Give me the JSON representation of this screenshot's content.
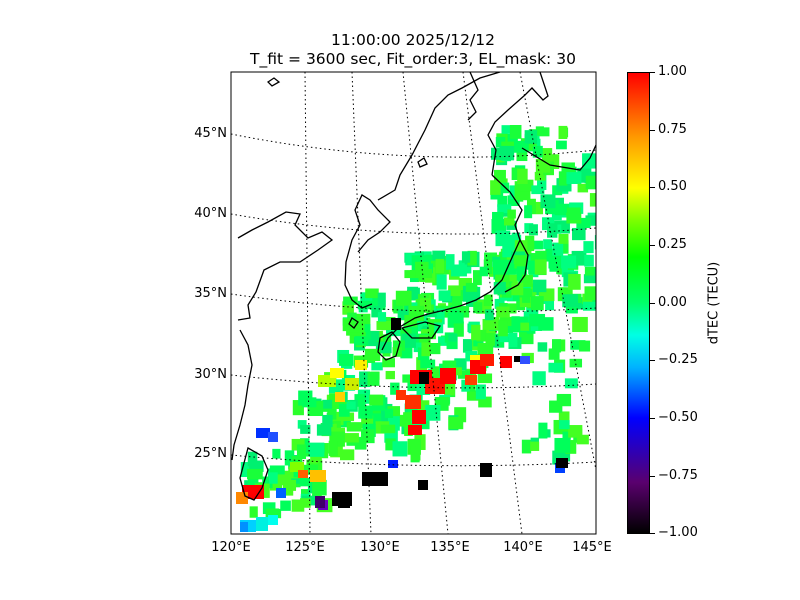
{
  "title": {
    "line1": "11:00:00 2025/12/12",
    "line2": "T_fit = 3600 sec, Fit_order:3, EL_mask: 30"
  },
  "map": {
    "lat_labels": [
      "45°N",
      "40°N",
      "35°N",
      "30°N",
      "25°N"
    ],
    "lon_labels": [
      "120°E",
      "125°E",
      "130°E",
      "135°E",
      "140°E",
      "145°E"
    ],
    "extent": {
      "lon": [
        120,
        145
      ],
      "lat": [
        20,
        49
      ]
    }
  },
  "colorbar": {
    "label": "dTEC (TECU)",
    "ticks": [
      "1.00",
      "0.75",
      "0.50",
      "0.25",
      "0.00",
      "−0.25",
      "−0.50",
      "−0.75",
      "−1.00"
    ],
    "range": [
      -1.0,
      1.0
    ],
    "colormap": "nipy-like: black-purple-blue-cyan-green-yellow-red"
  },
  "colors": {
    "positive_strong": "#ff0000",
    "neutral": "#00ff6a",
    "negative_strong": "#000000"
  }
}
